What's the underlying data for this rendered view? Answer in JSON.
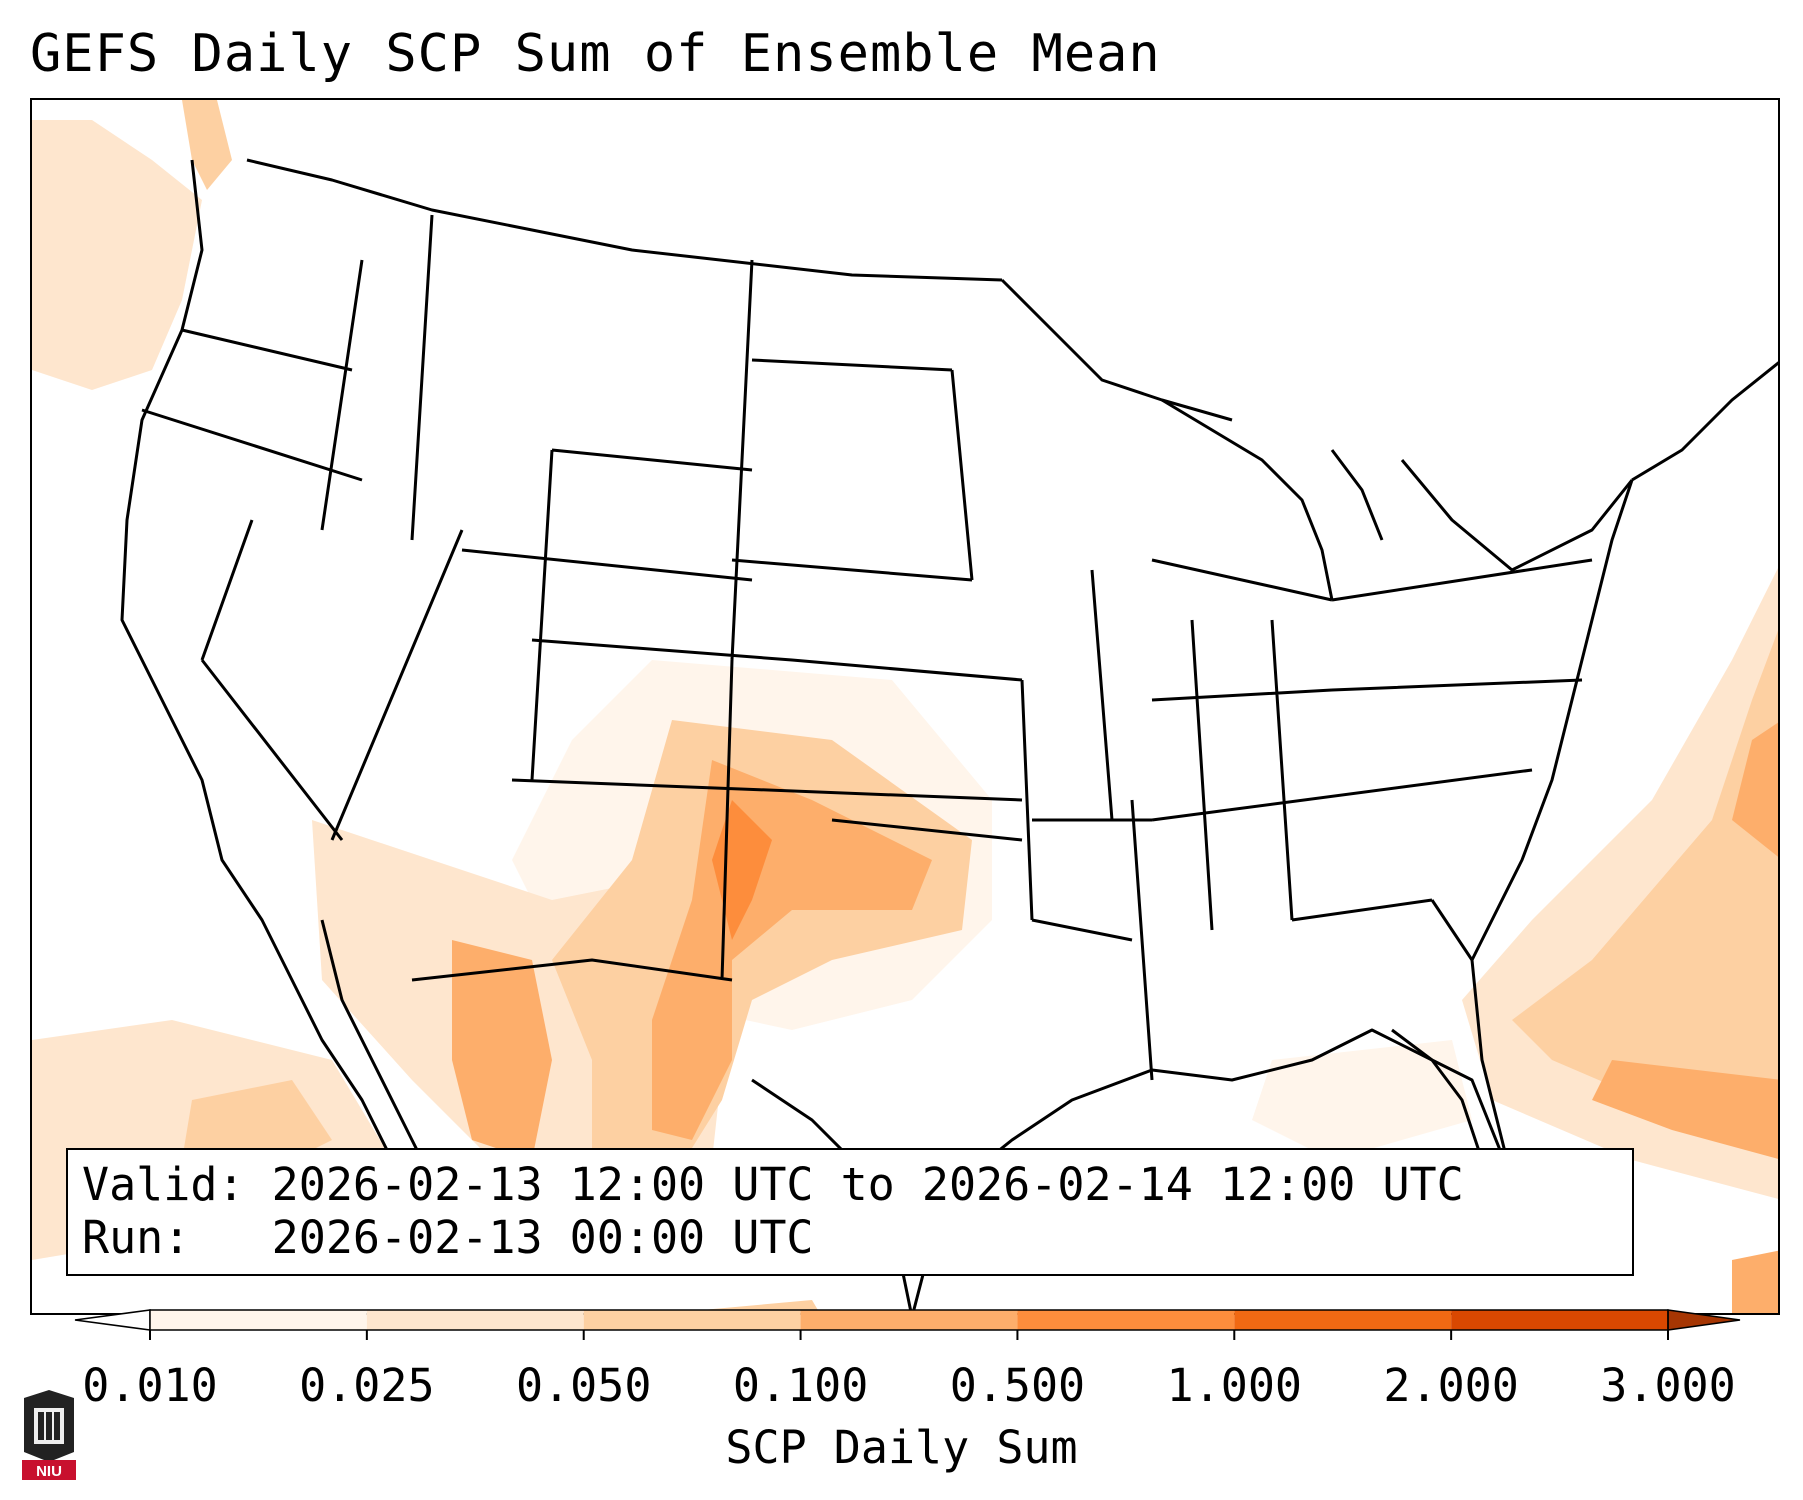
{
  "title": "GEFS Daily SCP Sum of Ensemble Mean",
  "info": {
    "valid_label": "Valid:",
    "valid_value": "2026-02-13 12:00 UTC to 2026-02-14 12:00 UTC",
    "run_label": "Run:",
    "run_value": "2026-02-13 00:00 UTC"
  },
  "colorbar": {
    "label": "SCP Daily Sum",
    "ticks": [
      "0.010",
      "0.025",
      "0.050",
      "0.100",
      "0.500",
      "1.000",
      "2.000",
      "3.000"
    ],
    "colors": [
      "#fff5eb",
      "#fee6ce",
      "#fdd0a2",
      "#fdae6b",
      "#fd8d3c",
      "#f16913",
      "#d94801",
      "#a63603"
    ]
  },
  "logo": {
    "text": "NIU",
    "color": "#c8102e"
  },
  "colors": {
    "border": "#000000",
    "lightest": "#fff5eb",
    "light": "#fee6ce",
    "medium": "#fdd0a2",
    "strong": "#fdae6b",
    "stronger": "#fd8d3c"
  }
}
